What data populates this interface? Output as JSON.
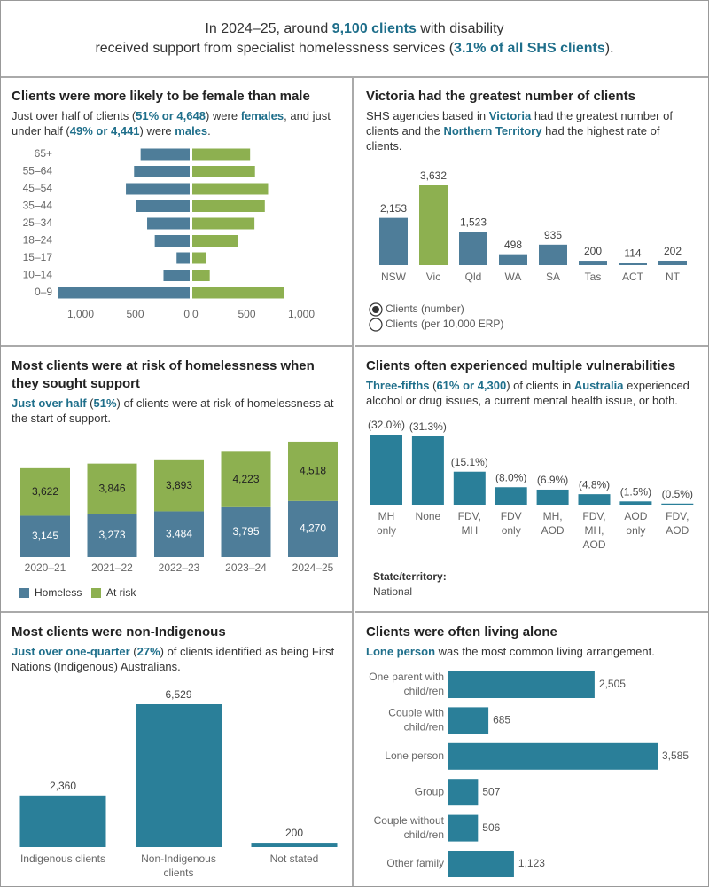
{
  "header": {
    "lines": [
      [
        {
          "text": "In 2024–25, around "
        },
        {
          "text": "9,100 clients",
          "strong": true
        },
        {
          "text": " with disability"
        }
      ],
      [
        {
          "text": "received support from specialist homelessness services ("
        },
        {
          "text": "3.1% of all SHS clients",
          "strong": true
        },
        {
          "text": ")."
        }
      ]
    ]
  },
  "chart_data": [
    {
      "type": "pyramid",
      "title": "Clients were more likely to be female than male",
      "subtitle": [
        {
          "text": "Just over half of clients ("
        },
        {
          "text": "51% or 4,648",
          "strong": true
        },
        {
          "text": ") were "
        },
        {
          "text": "females",
          "strong": true
        },
        {
          "text": ", and just under half ("
        },
        {
          "text": "49% or 4,441",
          "strong": true
        },
        {
          "text": ") were "
        },
        {
          "text": "males",
          "strong": true
        },
        {
          "text": "."
        }
      ],
      "categories": [
        "65+",
        "55–64",
        "45–54",
        "35–44",
        "25–34",
        "18–24",
        "15–17",
        "10–14",
        "0–9"
      ],
      "series": [
        {
          "color": "#4e7d99",
          "values": [
            450,
            510,
            585,
            490,
            390,
            320,
            120,
            240,
            1210
          ]
        },
        {
          "color": "#8db050",
          "values": [
            530,
            575,
            695,
            665,
            570,
            415,
            130,
            160,
            840
          ]
        }
      ],
      "xlim": [
        0,
        1250
      ],
      "xticks": [
        {
          "value": 1000,
          "label": "1,000"
        },
        500,
        0
      ]
    },
    {
      "type": "bar",
      "title": "Victoria had the greatest number of clients",
      "subtitle": [
        {
          "text": "SHS agencies based in "
        },
        {
          "text": "Victoria",
          "strong": true
        },
        {
          "text": " had the greatest number of clients and the "
        },
        {
          "text": "Northern Territory",
          "strong": true
        },
        {
          "text": " had the highest rate of clients."
        }
      ],
      "categories": [
        "NSW",
        "Vic",
        "Qld",
        "WA",
        "SA",
        "Tas",
        "ACT",
        "NT"
      ],
      "values": [
        2153,
        3632,
        1523,
        498,
        935,
        200,
        114,
        202
      ],
      "value_labels": [
        "2,153",
        "3,632",
        "1,523",
        "498",
        "935",
        "200",
        "114",
        "202"
      ],
      "colors": [
        "#4e7d99",
        "#8db050",
        "#4e7d99",
        "#4e7d99",
        "#4e7d99",
        "#4e7d99",
        "#4e7d99",
        "#4e7d99"
      ],
      "options": [
        "Clients (number)",
        "Clients (per 10,000 ERP)"
      ],
      "selected": 0
    },
    {
      "type": "stacked_bar",
      "title": "Most clients were at risk of homelessness when they sought support",
      "subtitle": [
        {
          "text": "Just over half",
          "strong": true
        },
        {
          "text": " ("
        },
        {
          "text": "51%",
          "strong": true
        },
        {
          "text": ") of clients were at risk of homelessness at the start of support."
        }
      ],
      "categories": [
        "2020–21",
        "2021–22",
        "2022–23",
        "2023–24",
        "2024–25"
      ],
      "series": [
        {
          "name": "Homeless",
          "color": "#4e7d99",
          "label_color": "#ffffff",
          "values": [
            3145,
            3273,
            3484,
            3795,
            4270
          ],
          "value_labels": [
            "3,145",
            "3,273",
            "3,484",
            "3,795",
            "4,270"
          ]
        },
        {
          "name": "At risk",
          "color": "#8db050",
          "label_color": "#222222",
          "values": [
            3622,
            3846,
            3893,
            4223,
            4518
          ],
          "value_labels": [
            "3,622",
            "3,846",
            "3,893",
            "4,223",
            "4,518"
          ]
        }
      ]
    },
    {
      "type": "bar",
      "title": "Clients often experienced multiple vulnerabilities",
      "subtitle": [
        {
          "text": "Three-fifths",
          "strong": true
        },
        {
          "text": " ("
        },
        {
          "text": "61% or 4,300",
          "strong": true
        },
        {
          "text": ") of clients in "
        },
        {
          "text": "Australia",
          "strong": true
        },
        {
          "text": " experienced alcohol or drug issues, a current mental health issue, or both."
        }
      ],
      "categories": [
        [
          "MH",
          "only"
        ],
        [
          "None"
        ],
        [
          "FDV,",
          "MH"
        ],
        [
          "FDV",
          "only"
        ],
        [
          "MH,",
          "AOD"
        ],
        [
          "FDV,",
          "MH,",
          "AOD"
        ],
        [
          "AOD",
          "only"
        ],
        [
          "FDV,",
          "AOD"
        ]
      ],
      "values": [
        32.0,
        31.3,
        15.1,
        8.0,
        6.9,
        4.8,
        1.5,
        0.5
      ],
      "value_labels": [
        "(32.0%)",
        "(31.3%)",
        "(15.1%)",
        "(8.0%)",
        "(6.9%)",
        "(4.8%)",
        "(1.5%)",
        "(0.5%)"
      ],
      "color": "#2a7f99",
      "filter": {
        "label": "State/territory:",
        "value": "National"
      }
    },
    {
      "type": "bar",
      "title": "Most clients were non-Indigenous",
      "subtitle": [
        {
          "text": "Just over one-quarter",
          "strong": true
        },
        {
          "text": " ("
        },
        {
          "text": "27%",
          "strong": true
        },
        {
          "text": ") of clients identified as being First Nations (Indigenous) Australians."
        }
      ],
      "categories": [
        [
          "Indigenous clients"
        ],
        [
          "Non-Indigenous",
          "clients"
        ],
        [
          "Not stated"
        ]
      ],
      "values": [
        2360,
        6529,
        200
      ],
      "value_labels": [
        "2,360",
        "6,529",
        "200"
      ],
      "color": "#2a7f99"
    },
    {
      "type": "hbar",
      "title": "Clients were often living alone",
      "subtitle": [
        {
          "text": "Lone person",
          "strong": true
        },
        {
          "text": " was the most common living arrangement."
        }
      ],
      "categories": [
        [
          "One parent with",
          "child/ren"
        ],
        [
          "Couple with",
          "child/ren"
        ],
        [
          "Lone person"
        ],
        [
          "Group"
        ],
        [
          "Couple without",
          "child/ren"
        ],
        [
          "Other family"
        ]
      ],
      "values": [
        2505,
        685,
        3585,
        507,
        506,
        1123
      ],
      "value_labels": [
        "2,505",
        "685",
        "3,585",
        "507",
        "506",
        "1,123"
      ],
      "color": "#2a7f99"
    }
  ]
}
